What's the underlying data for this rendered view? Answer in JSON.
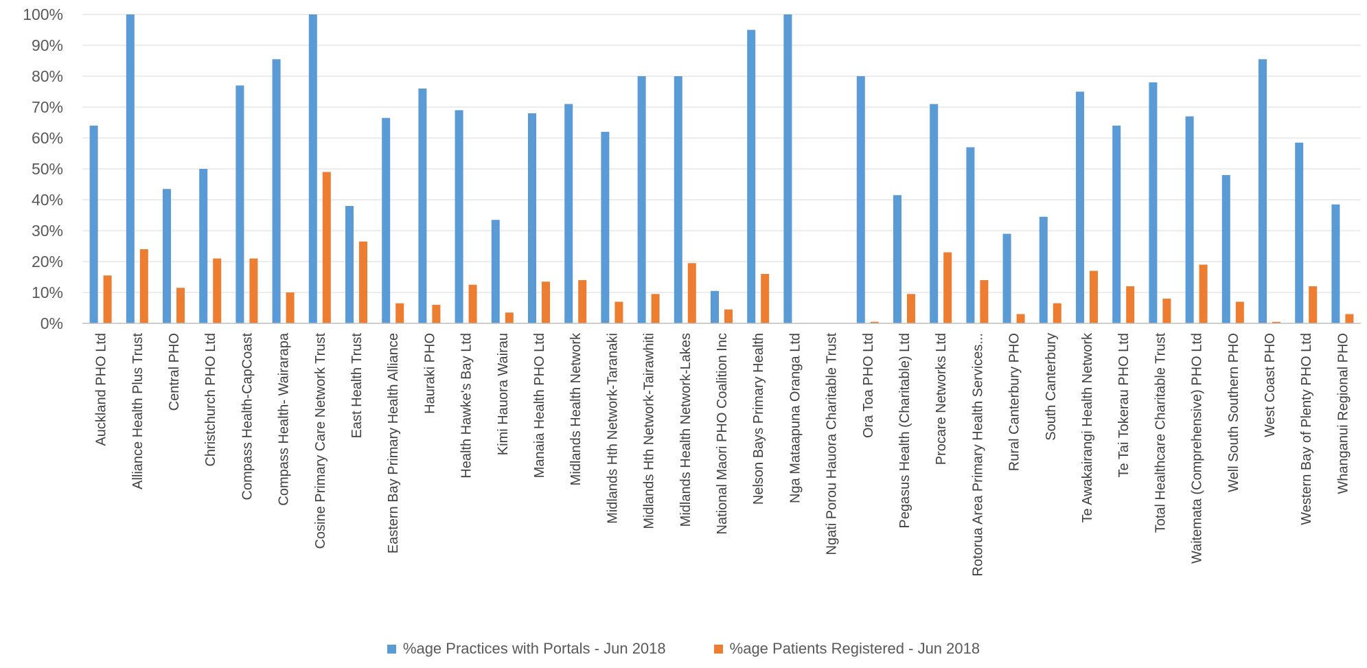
{
  "chart_data": {
    "type": "bar",
    "title": "",
    "xlabel": "",
    "ylabel": "",
    "ylim": [
      0,
      100
    ],
    "yticks": [
      "0%",
      "10%",
      "20%",
      "30%",
      "40%",
      "50%",
      "60%",
      "70%",
      "80%",
      "90%",
      "100%"
    ],
    "grid": true,
    "legend_position": "bottom",
    "categories": [
      "Auckland PHO Ltd",
      "Alliance Health Plus Trust",
      "Central PHO",
      "Christchurch PHO Ltd",
      "Compass Health-CapCoast",
      "Compass Health- Wairarapa",
      "Cosine Primary Care Network Trust",
      "East Health Trust",
      "Eastern Bay Primary Health Alliance",
      "Hauraki PHO",
      "Health Hawke's Bay Ltd",
      "Kimi Hauora Wairau",
      "Manaia Health PHO Ltd",
      "Midlands Health Network",
      "Midlands Hth Network-Taranaki",
      "Midlands Hth Network-Tairawhiti",
      "Midlands Health Network-Lakes",
      "National Maori PHO Coalition Inc",
      "Nelson Bays Primary Health",
      "Nga Mataapuna Oranga Ltd",
      "Ngati Porou Hauora Charitable Trust",
      "Ora Toa PHO Ltd",
      "Pegasus Health (Charitable) Ltd",
      "Procare Networks Ltd",
      "Rotorua Area Primary Health Services...",
      "Rural Canterbury PHO",
      "South Canterbury",
      "Te Awakairangi Health Network",
      "Te Tai Tokerau PHO Ltd",
      "Total Healthcare Charitable Trust",
      "Waitemata (Comprehensive) PHO Ltd",
      "Well South Southern PHO",
      "West Coast PHO",
      "Western Bay of Plenty PHO Ltd",
      "Whanganui Regional PHO"
    ],
    "series": [
      {
        "name": "%age Practices with Portals - Jun 2018",
        "color": "#5B9BD5",
        "values": [
          64,
          100,
          43.5,
          50,
          77,
          85.5,
          100,
          38,
          66.5,
          76,
          69,
          33.5,
          68,
          71,
          62,
          80,
          80,
          10.5,
          95,
          100,
          0,
          80,
          41.5,
          71,
          57,
          29,
          34.5,
          75,
          64,
          78,
          67,
          48,
          85.5,
          58.5,
          38.5
        ]
      },
      {
        "name": "%age Patients Registered - Jun 2018",
        "color": "#ED7D31",
        "values": [
          15.5,
          24,
          11.5,
          21,
          21,
          10,
          49,
          26.5,
          6.5,
          6,
          12.5,
          3.5,
          13.5,
          14,
          7,
          9.5,
          19.5,
          4.5,
          16,
          0,
          0,
          0.5,
          9.5,
          23,
          14,
          3,
          6.5,
          17,
          12,
          8,
          19,
          7,
          0.5,
          12,
          3
        ]
      }
    ]
  }
}
